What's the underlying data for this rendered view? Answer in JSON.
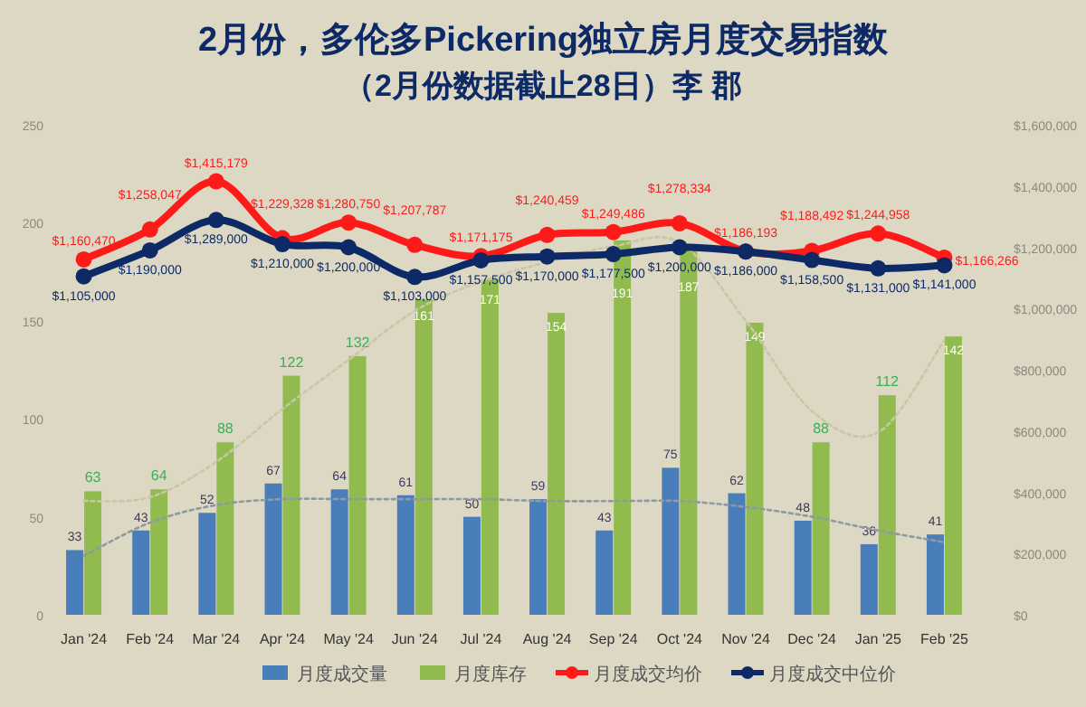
{
  "chart_data": {
    "type": "bar",
    "title": "2月份，多伦多Pickering独立房月度交易指数",
    "subtitle": "（2月份数据截止28日）李 郡",
    "categories": [
      "Jan '24",
      "Feb '24",
      "Mar '24",
      "Apr '24",
      "May '24",
      "Jun '24",
      "Jul '24",
      "Aug '24",
      "Sep '24",
      "Oct '24",
      "Nov '24",
      "Dec '24",
      "Jan '25",
      "Feb '25"
    ],
    "ylim": [
      0,
      250
    ],
    "yticks": [
      0,
      50,
      100,
      150,
      200,
      250
    ],
    "y2lim": [
      0,
      1600000
    ],
    "y2ticks": [
      {
        "value": 0,
        "label": "$0"
      },
      {
        "value": 200000,
        "label": "$200,000"
      },
      {
        "value": 400000,
        "label": "$400,000"
      },
      {
        "value": 600000,
        "label": "$600,000"
      },
      {
        "value": 800000,
        "label": "$800,000"
      },
      {
        "value": 1000000,
        "label": "$1,000,000"
      },
      {
        "value": 1200000,
        "label": "$1,200,000"
      },
      {
        "value": 1400000,
        "label": "$1,400,000"
      },
      {
        "value": 1600000,
        "label": "$1,600,000"
      }
    ],
    "grid": false,
    "legend": "bottom",
    "marker": "circle",
    "series": [
      {
        "name": "月度成交量",
        "color": "#4a7ebb",
        "values": [
          33,
          43,
          52,
          67,
          64,
          61,
          50,
          59,
          43,
          75,
          62,
          48,
          36,
          41
        ],
        "value_labels": [
          "33",
          "43",
          "52",
          "67",
          "64",
          "61",
          "50",
          "59",
          "43",
          "75",
          "62",
          "48",
          "36",
          "41"
        ]
      },
      {
        "name": "月度库存",
        "color": "#92bb4f",
        "values": [
          63,
          64,
          88,
          122,
          132,
          161,
          171,
          154,
          191,
          187,
          149,
          88,
          112,
          142
        ],
        "value_labels": [
          "63",
          "64",
          "88",
          "122",
          "132",
          "161",
          "171",
          "154",
          "191",
          "187",
          "149",
          "88",
          "112",
          "142"
        ]
      },
      {
        "type": "line",
        "color": "#8e9aa0",
        "line_style": "dotted",
        "marker": "none",
        "values": [
          30,
          47,
          56,
          59,
          59,
          59,
          59,
          58,
          58,
          58,
          55,
          50,
          43,
          37
        ]
      },
      {
        "type": "line",
        "color": "#c9c6a6",
        "line_style": "dotted",
        "marker": "none",
        "values": [
          58,
          60,
          78,
          105,
          130,
          155,
          170,
          180,
          188,
          190,
          150,
          104,
          93,
          140
        ]
      },
      {
        "name": "月度成交均价",
        "type": "line",
        "axis": "y2",
        "color": "#ff1a1a",
        "values": [
          1160470,
          1258047,
          1415179,
          1229328,
          1280750,
          1207787,
          1171175,
          1240459,
          1249486,
          1278334,
          1186193,
          1188492,
          1244958,
          1166266
        ],
        "value_labels": [
          "$1,160,470",
          "$1,258,047",
          "$1,415,179",
          "$1,229,328",
          "$1,280,750",
          "$1,207,787",
          "$1,171,175",
          "$1,240,459",
          "$1,249,486",
          "$1,278,334",
          "$1,186,193",
          "$1,188,492",
          "$1,244,958",
          "$1,166,266"
        ]
      },
      {
        "name": "月度成交中位价",
        "type": "line",
        "axis": "y2",
        "color": "#0d2a66",
        "values": [
          1105000,
          1190000,
          1289000,
          1210000,
          1200000,
          1103000,
          1157500,
          1170000,
          1177500,
          1200000,
          1186000,
          1158500,
          1131000,
          1141000
        ],
        "value_labels": [
          "$1,105,000",
          "$1,190,000",
          "$1,289,000",
          "$1,210,000",
          "$1,200,000",
          "$1,103,000",
          "$1,157,500",
          "$1,170,000",
          "$1,177,500",
          "$1,200,000",
          "$1,186,000",
          "$1,158,500",
          "$1,131,000",
          "$1,141,000"
        ]
      }
    ]
  }
}
